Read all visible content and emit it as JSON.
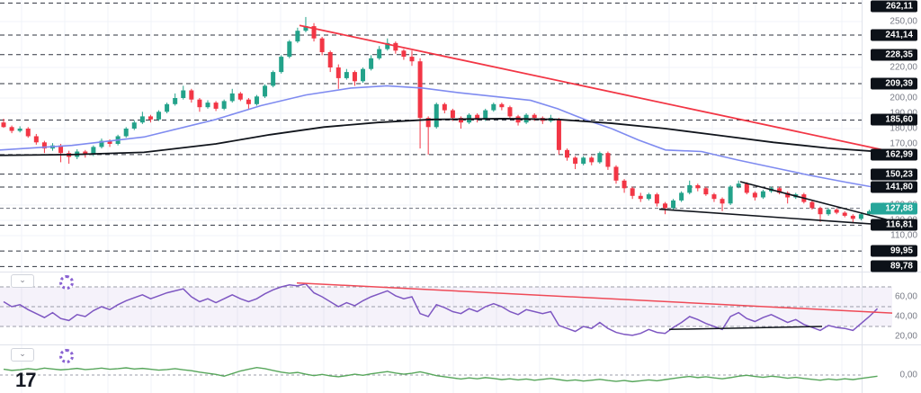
{
  "app": {
    "logo_text": "17"
  },
  "colors": {
    "background": "#ffffff",
    "candle_up": "#23a28a",
    "candle_down": "#f23645",
    "sma_fast": "#7f8bf0",
    "sma_slow": "#11151c",
    "trendline_red": "#f23645",
    "wedge_black": "#11151c",
    "rsi_line": "#7e57c2",
    "rsi_band_fill": "rgba(126,87,194,0.08)",
    "rsi_trend_red": "#ef4a57",
    "rsi_trend_black": "#11151c",
    "osc_line": "#57a65b",
    "level_line": "#2e333e",
    "last_price_line": "#6a6f7a",
    "grid": "#f1f3f8",
    "axis_text": "#787b86",
    "badge_bg": "#0c1118",
    "badge_last_bg": "#26a69a",
    "separator": "#e0e3eb",
    "star": "#26a69a"
  },
  "price_axis": {
    "level_badges": [
      {
        "label": "262,11",
        "price": 262.11
      },
      {
        "label": "241,14",
        "price": 241.14
      },
      {
        "label": "228,35",
        "price": 228.35
      },
      {
        "label": "209,39",
        "price": 209.39
      },
      {
        "label": "185,60",
        "price": 185.6
      },
      {
        "label": "162,99",
        "price": 162.99
      },
      {
        "label": "150,23",
        "price": 150.23
      },
      {
        "label": "141,80",
        "price": 141.8
      },
      {
        "label": "116,81",
        "price": 116.81
      },
      {
        "label": "99,95",
        "price": 99.95
      },
      {
        "label": "89,78",
        "price": 89.78
      }
    ],
    "last_price_badge": {
      "label": "127,88",
      "price": 127.88
    },
    "tick_labels": [
      {
        "label": "250,00",
        "price": 250
      },
      {
        "label": "220,00",
        "price": 220
      },
      {
        "label": "200,00",
        "price": 200
      },
      {
        "label": "190,00",
        "price": 190
      },
      {
        "label": "180,00",
        "price": 180
      },
      {
        "label": "170,00",
        "price": 170
      },
      {
        "label": "130,00",
        "price": 130
      },
      {
        "label": "120,00",
        "price": 120
      },
      {
        "label": "110,00",
        "price": 110
      }
    ]
  },
  "rsi_axis": {
    "ticks": [
      {
        "label": "60,00",
        "value": 60
      },
      {
        "label": "40,00",
        "value": 40
      },
      {
        "label": "20,00",
        "value": 20
      }
    ]
  },
  "osc_axis": {
    "ticks": [
      {
        "label": "0,00",
        "value": 0
      }
    ]
  },
  "panes": {
    "rsi": {
      "chevron": "⌄"
    },
    "osc": {
      "chevron": "⌄"
    }
  },
  "marker": {
    "glyph": "✦"
  },
  "chart_data": {
    "type": "candlestick",
    "description": "Daily candlestick price chart with 50/200 SMA, red downtrend line from the top, converging falling-wedge trendlines at right, horizontal level lines; RSI pane with band 30-70 and trendlines; oscillator pane around zero.",
    "price_pane": {
      "ylim": [
        85,
        265
      ],
      "last_price": 127.88,
      "levels": [
        262.11,
        241.14,
        228.35,
        209.39,
        185.6,
        162.99,
        150.23,
        141.8,
        116.81,
        99.95,
        89.78
      ],
      "candles_ohlc": [
        [
          184,
          186.5,
          180.5,
          181
        ],
        [
          181,
          182,
          177,
          178.5
        ],
        [
          178.5,
          181.5,
          177.5,
          180
        ],
        [
          180,
          181,
          174,
          175
        ],
        [
          175,
          176.5,
          169.5,
          171
        ],
        [
          171,
          172,
          164,
          167
        ],
        [
          167,
          170.5,
          165.5,
          169
        ],
        [
          169,
          170,
          158,
          164
        ],
        [
          164,
          165.5,
          157,
          161.5
        ],
        [
          161.5,
          166.5,
          160,
          165
        ],
        [
          165,
          166,
          161,
          163
        ],
        [
          163,
          169,
          162,
          168
        ],
        [
          168,
          173.5,
          167,
          172
        ],
        [
          172,
          173,
          168,
          170
        ],
        [
          170,
          176,
          169,
          175
        ],
        [
          175,
          181,
          174,
          180
        ],
        [
          180,
          185.5,
          179,
          184
        ],
        [
          184,
          191,
          183,
          188
        ],
        [
          188,
          189,
          184,
          186
        ],
        [
          186,
          192,
          185,
          191
        ],
        [
          191,
          197,
          190,
          196
        ],
        [
          196,
          203,
          195,
          200
        ],
        [
          200,
          208,
          199,
          205
        ],
        [
          205,
          206,
          197,
          199
        ],
        [
          199,
          200,
          191,
          194
        ],
        [
          194,
          198.5,
          193,
          197
        ],
        [
          197,
          198,
          191.5,
          193
        ],
        [
          193,
          199,
          192,
          198
        ],
        [
          198,
          206,
          197,
          203
        ],
        [
          203,
          204,
          198,
          199
        ],
        [
          199,
          200,
          193,
          196
        ],
        [
          196,
          202,
          195,
          201
        ],
        [
          201,
          209,
          200,
          208
        ],
        [
          208,
          218,
          207,
          217
        ],
        [
          217,
          228,
          216,
          227
        ],
        [
          227,
          238,
          226,
          237
        ],
        [
          237,
          246,
          236,
          244
        ],
        [
          244,
          253,
          243,
          247
        ],
        [
          247,
          249,
          237,
          239
        ],
        [
          239,
          240,
          228,
          230
        ],
        [
          230,
          231,
          217,
          220
        ],
        [
          220,
          222,
          206,
          213
        ],
        [
          213,
          219,
          212,
          217
        ],
        [
          217,
          218,
          208,
          211
        ],
        [
          211,
          220,
          210,
          219
        ],
        [
          219,
          228,
          218,
          226
        ],
        [
          226,
          234,
          225,
          232
        ],
        [
          232,
          239,
          231,
          236
        ],
        [
          236,
          237,
          229,
          231
        ],
        [
          231,
          232,
          225,
          227
        ],
        [
          227,
          231,
          221,
          224
        ],
        [
          224,
          226,
          167,
          187
        ],
        [
          187,
          188,
          163,
          181
        ],
        [
          181,
          197,
          180,
          196
        ],
        [
          196,
          197,
          190,
          192
        ],
        [
          192,
          193,
          185,
          187
        ],
        [
          187,
          188,
          180,
          184
        ],
        [
          184,
          190,
          183,
          189
        ],
        [
          189,
          190,
          184,
          186
        ],
        [
          186,
          193,
          185,
          192
        ],
        [
          192,
          197,
          191,
          196
        ],
        [
          196,
          197,
          192,
          194
        ],
        [
          194,
          195,
          187,
          188
        ],
        [
          188,
          189,
          182,
          184
        ],
        [
          184,
          190,
          183,
          189
        ],
        [
          189,
          190,
          185,
          187
        ],
        [
          187,
          188,
          183,
          185
        ],
        [
          185,
          189,
          184,
          187
        ],
        [
          186,
          187,
          163,
          166
        ],
        [
          166,
          167,
          159,
          161
        ],
        [
          161,
          162,
          153.5,
          157
        ],
        [
          157,
          162,
          156,
          161
        ],
        [
          161,
          162,
          156,
          158
        ],
        [
          158,
          165,
          157,
          164
        ],
        [
          164,
          165,
          153,
          155
        ],
        [
          155,
          156,
          144,
          146
        ],
        [
          146,
          147,
          138,
          141
        ],
        [
          141,
          142,
          134,
          136
        ],
        [
          136,
          138,
          132,
          134
        ],
        [
          134,
          138,
          133,
          137
        ],
        [
          137,
          138,
          129,
          131
        ],
        [
          131,
          132,
          124,
          128
        ],
        [
          128,
          134,
          127,
          133
        ],
        [
          133,
          139,
          132,
          138
        ],
        [
          138,
          146,
          137,
          143
        ],
        [
          143,
          144,
          139,
          141
        ],
        [
          141,
          142,
          136,
          137
        ],
        [
          137,
          138,
          132,
          134
        ],
        [
          134,
          135,
          126,
          131
        ],
        [
          131,
          143,
          130,
          142
        ],
        [
          142,
          146,
          141,
          144
        ],
        [
          144,
          145,
          137,
          138
        ],
        [
          138,
          139,
          133,
          135
        ],
        [
          135,
          140,
          134,
          139
        ],
        [
          139,
          142,
          138,
          141
        ],
        [
          141,
          142,
          137,
          138
        ],
        [
          138,
          139,
          131,
          135
        ],
        [
          135,
          138,
          134,
          137
        ],
        [
          137,
          138,
          131,
          132
        ],
        [
          132,
          133,
          127,
          128
        ],
        [
          128,
          129,
          119,
          124
        ],
        [
          124,
          128,
          123,
          127
        ],
        [
          127,
          128,
          124,
          125
        ],
        [
          125,
          126,
          122,
          123
        ],
        [
          123,
          124,
          118,
          121
        ],
        [
          121,
          125,
          120,
          124
        ],
        [
          124,
          127,
          123,
          126
        ],
        [
          126,
          129,
          125,
          127.9
        ]
      ],
      "sma_fast_points": [
        [
          0,
          166
        ],
        [
          80,
          169
        ],
        [
          160,
          174.5
        ],
        [
          240,
          186
        ],
        [
          290,
          195
        ],
        [
          340,
          202
        ],
        [
          390,
          206.5
        ],
        [
          430,
          208
        ],
        [
          470,
          206.5
        ],
        [
          510,
          203.5
        ],
        [
          550,
          201
        ],
        [
          590,
          198.5
        ],
        [
          620,
          193
        ],
        [
          650,
          186
        ],
        [
          680,
          180
        ],
        [
          710,
          172.5
        ],
        [
          740,
          166
        ],
        [
          780,
          165
        ],
        [
          820,
          159.5
        ],
        [
          860,
          154.5
        ],
        [
          900,
          149.5
        ],
        [
          940,
          145
        ],
        [
          992,
          139.5
        ]
      ],
      "sma_slow_points": [
        [
          0,
          162.5
        ],
        [
          80,
          163
        ],
        [
          160,
          164.5
        ],
        [
          240,
          170
        ],
        [
          300,
          176
        ],
        [
          360,
          181
        ],
        [
          420,
          184
        ],
        [
          480,
          186
        ],
        [
          560,
          186.5
        ],
        [
          620,
          186
        ],
        [
          680,
          183.5
        ],
        [
          740,
          180
        ],
        [
          800,
          175.5
        ],
        [
          860,
          171
        ],
        [
          920,
          167.3
        ],
        [
          992,
          164.3
        ]
      ],
      "downtrend_line": [
        [
          333,
          247.5
        ],
        [
          992,
          164.8
        ]
      ],
      "wedge_upper": [
        [
          823,
          145.3
        ],
        [
          1002,
          118
        ]
      ],
      "wedge_lower": [
        [
          733,
          127.3
        ],
        [
          1002,
          116.3
        ]
      ]
    },
    "rsi_pane": {
      "ylim": [
        15,
        85
      ],
      "band": [
        30,
        70
      ],
      "midline": 50,
      "values": [
        55,
        50,
        52,
        47,
        43,
        39,
        44,
        38,
        36,
        42,
        40,
        46,
        50,
        47,
        52,
        56,
        59,
        62,
        58,
        61,
        64,
        66,
        68,
        60,
        55,
        58,
        54,
        58,
        62,
        58,
        55,
        58,
        63,
        67,
        70,
        72,
        71,
        73,
        64,
        60,
        55,
        50,
        54,
        51,
        56,
        60,
        63,
        66,
        61,
        58,
        60,
        43,
        40,
        52,
        49,
        45,
        43,
        48,
        45,
        50,
        53,
        50,
        45,
        42,
        47,
        45,
        43,
        45,
        31,
        28,
        25,
        30,
        28,
        34,
        28,
        24,
        22,
        21,
        23,
        27,
        24,
        23,
        29,
        34,
        40,
        37,
        33,
        30,
        27,
        40,
        44,
        38,
        35,
        39,
        42,
        38,
        34,
        37,
        32,
        29,
        26,
        31,
        29,
        28,
        26,
        33,
        40,
        48
      ],
      "trend_red": [
        [
          330,
          74
        ],
        [
          992,
          43.5
        ]
      ],
      "trend_black": [
        [
          744,
          27
        ],
        [
          914,
          30
        ]
      ]
    },
    "osc_pane": {
      "zero": 0,
      "values": [
        2.0,
        1.6,
        1.8,
        2.2,
        1.9,
        2.4,
        2.1,
        1.8,
        2.0,
        2.3,
        1.9,
        2.1,
        2.4,
        2.0,
        2.2,
        2.5,
        2.1,
        2.3,
        2.0,
        1.7,
        1.9,
        2.2,
        1.8,
        1.5,
        1.0,
        0.6,
        0.2,
        -0.4,
        0.5,
        1.4,
        2.0,
        2.6,
        2.2,
        1.6,
        1.0,
        0.6,
        0.9,
        0.3,
        -0.2,
        0.2,
        -0.3,
        -0.6,
        -0.2,
        0.3,
        -0.1,
        0.4,
        0.8,
        1.2,
        0.7,
        0.3,
        0.6,
        1.1,
        0.5,
        -0.2,
        -0.6,
        -1.0,
        -1.4,
        -1.0,
        -1.3,
        -0.9,
        -1.2,
        -1.6,
        -1.3,
        -1.7,
        -1.4,
        -1.8,
        -1.5,
        -1.2,
        -1.6,
        -2.0,
        -1.7,
        -2.1,
        -1.8,
        -1.5,
        -1.9,
        -2.2,
        -1.9,
        -2.3,
        -2.0,
        -1.7,
        -2.0,
        -1.6,
        -1.2,
        -0.8,
        -0.5,
        -0.9,
        -0.6,
        -1.0,
        -1.3,
        -0.9,
        -0.4,
        -0.1,
        -0.5,
        -0.8,
        -0.4,
        -0.7,
        -1.1,
        -0.8,
        -1.2,
        -1.5,
        -1.8,
        -1.4,
        -1.7,
        -1.3,
        -1.6,
        -1.2,
        -0.8,
        -0.4
      ]
    }
  }
}
